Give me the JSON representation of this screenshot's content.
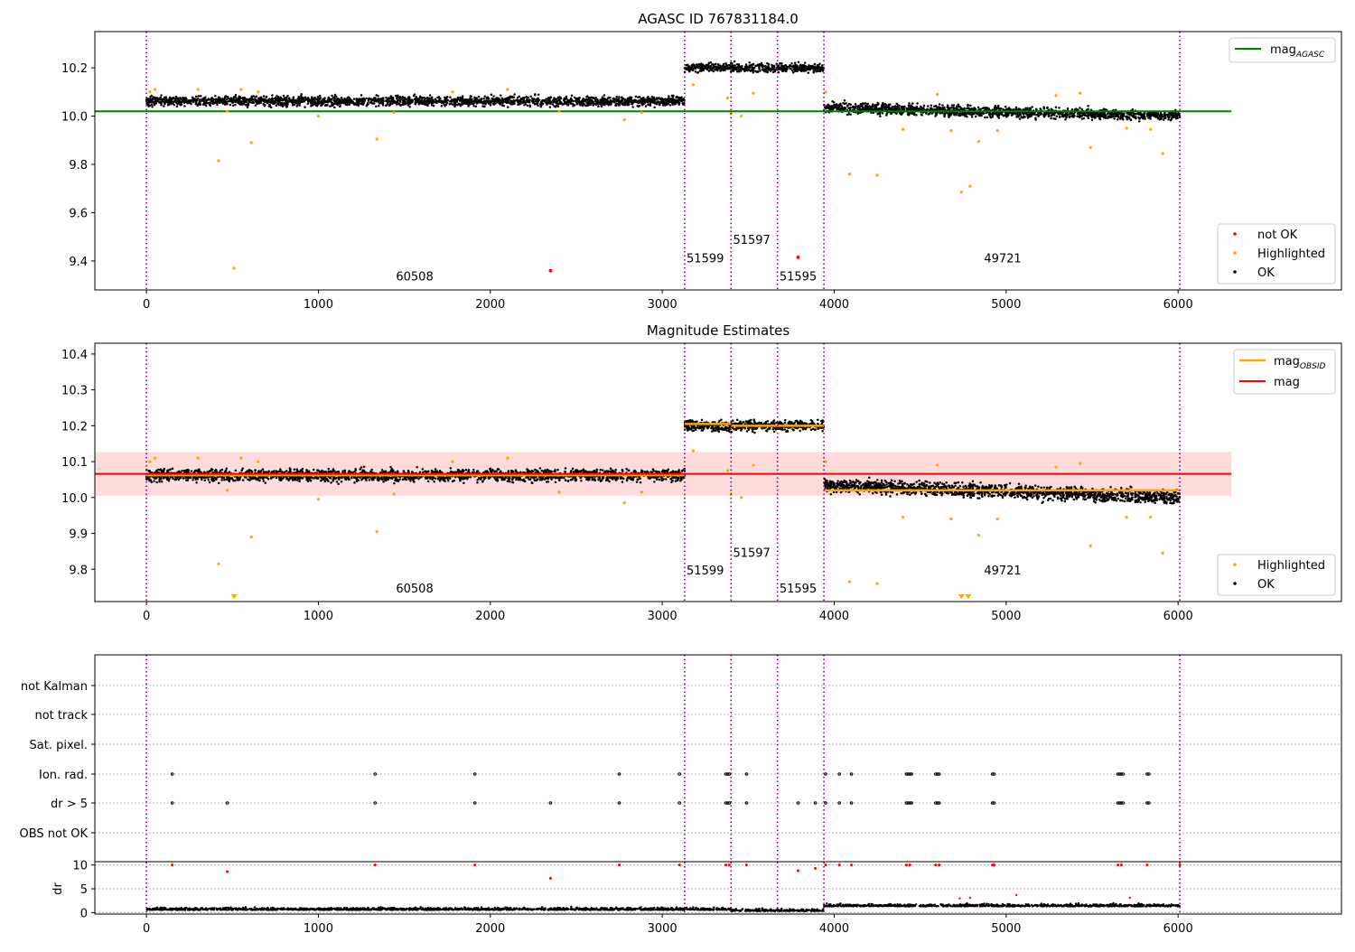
{
  "colors": {
    "ok": "#000000",
    "highlighted": "#ffa500",
    "not_ok": "#ff0000",
    "agasc_line": "#008000",
    "mag_line": "#ff0000",
    "obsid_mag": "#ffa500",
    "band": "#ffc0c0",
    "boundary": "#800080",
    "grid": "#b0b0b0"
  },
  "chart_data": [
    {
      "type": "scatter",
      "title": "AGASC ID 767831184.0",
      "xlim": [
        -300,
        6950
      ],
      "ylim": [
        9.28,
        10.35
      ],
      "xticks": [
        0,
        1000,
        2000,
        3000,
        4000,
        5000,
        6000
      ],
      "yticks": [
        9.4,
        9.6,
        9.8,
        10.0,
        10.2
      ],
      "reference_line": {
        "label": "mag",
        "subscript": "AGASC",
        "value": 10.02,
        "x_range": [
          -300,
          6310
        ]
      },
      "obsid_boundaries": [
        0,
        3130,
        3400,
        3670,
        3940,
        6010
      ],
      "obsid_labels": [
        {
          "text": "60508",
          "x": 1560,
          "y": 9.32
        },
        {
          "text": "51599",
          "x": 3250,
          "y": 9.395
        },
        {
          "text": "51597",
          "x": 3520,
          "y": 9.47
        },
        {
          "text": "51595",
          "x": 3790,
          "y": 9.32
        },
        {
          "text": "49721",
          "x": 4980,
          "y": 9.395
        }
      ],
      "segments": [
        {
          "x": [
            0,
            3130
          ],
          "mean": 10.062,
          "spread": 0.02
        },
        {
          "x": [
            3130,
            3940
          ],
          "mean": 10.2,
          "spread": 0.018
        },
        {
          "x": [
            3940,
            6010
          ],
          "mean_start": 10.035,
          "mean_end": 10.0,
          "spread": 0.022
        }
      ],
      "highlighted_points": [
        {
          "x": 20,
          "y": 10.1
        },
        {
          "x": 50,
          "y": 10.11
        },
        {
          "x": 300,
          "y": 10.11
        },
        {
          "x": 420,
          "y": 9.815
        },
        {
          "x": 470,
          "y": 10.02
        },
        {
          "x": 510,
          "y": 9.37
        },
        {
          "x": 550,
          "y": 10.11
        },
        {
          "x": 610,
          "y": 9.89
        },
        {
          "x": 650,
          "y": 10.1
        },
        {
          "x": 1000,
          "y": 10.0
        },
        {
          "x": 1340,
          "y": 9.905
        },
        {
          "x": 1440,
          "y": 10.015
        },
        {
          "x": 1780,
          "y": 10.1
        },
        {
          "x": 2100,
          "y": 10.11
        },
        {
          "x": 2400,
          "y": 10.02
        },
        {
          "x": 2780,
          "y": 9.985
        },
        {
          "x": 2880,
          "y": 10.015
        },
        {
          "x": 3180,
          "y": 10.13
        },
        {
          "x": 3380,
          "y": 10.075
        },
        {
          "x": 3400,
          "y": 10.01
        },
        {
          "x": 3460,
          "y": 10.0
        },
        {
          "x": 3530,
          "y": 10.095
        },
        {
          "x": 3950,
          "y": 10.1
        },
        {
          "x": 4090,
          "y": 9.76
        },
        {
          "x": 4250,
          "y": 9.755
        },
        {
          "x": 4400,
          "y": 9.945
        },
        {
          "x": 4600,
          "y": 10.09
        },
        {
          "x": 4680,
          "y": 9.94
        },
        {
          "x": 4740,
          "y": 9.685
        },
        {
          "x": 4790,
          "y": 9.71
        },
        {
          "x": 4840,
          "y": 9.895
        },
        {
          "x": 4950,
          "y": 9.94
        },
        {
          "x": 5290,
          "y": 10.085
        },
        {
          "x": 5430,
          "y": 10.095
        },
        {
          "x": 5490,
          "y": 9.87
        },
        {
          "x": 5700,
          "y": 9.95
        },
        {
          "x": 5840,
          "y": 9.945
        },
        {
          "x": 5910,
          "y": 9.845
        }
      ],
      "not_ok_points": [
        {
          "x": 2350,
          "y": 9.36
        },
        {
          "x": 3790,
          "y": 9.415
        }
      ],
      "legend_lines": [
        {
          "label": "mag",
          "subscript": "AGASC",
          "placement": "top-right"
        }
      ],
      "legend_markers": [
        {
          "label": "not OK",
          "color": "#ff0000",
          "placement": "bottom-right"
        },
        {
          "label": "Highlighted",
          "color": "#ffa500",
          "placement": "bottom-right"
        },
        {
          "label": "OK",
          "color": "#000000",
          "placement": "bottom-right"
        }
      ]
    },
    {
      "type": "scatter",
      "title": "Magnitude Estimates",
      "xlim": [
        -300,
        6950
      ],
      "ylim": [
        9.71,
        10.43
      ],
      "xticks": [
        0,
        1000,
        2000,
        3000,
        4000,
        5000,
        6000
      ],
      "yticks": [
        9.8,
        9.9,
        10.0,
        10.1,
        10.2,
        10.3,
        10.4
      ],
      "mag_line": {
        "label": "mag",
        "value": 10.066,
        "band": [
          10.005,
          10.127
        ],
        "x_range": [
          -300,
          6310
        ]
      },
      "obsid_mag_segments": [
        {
          "x": [
            0,
            3130
          ],
          "value": 10.062
        },
        {
          "x": [
            3130,
            3400
          ],
          "value": 10.205
        },
        {
          "x": [
            3400,
            3670
          ],
          "value": 10.2
        },
        {
          "x": [
            3670,
            3940
          ],
          "value": 10.2
        },
        {
          "x": [
            3940,
            6010
          ],
          "value": 10.02
        }
      ],
      "obsid_boundaries": [
        0,
        3130,
        3400,
        3670,
        3940,
        6010
      ],
      "obsid_labels": [
        {
          "text": "60508",
          "x": 1560,
          "y": 9.735
        },
        {
          "text": "51599",
          "x": 3250,
          "y": 9.785
        },
        {
          "text": "51597",
          "x": 3520,
          "y": 9.835
        },
        {
          "text": "51595",
          "x": 3790,
          "y": 9.735
        },
        {
          "text": "49721",
          "x": 4980,
          "y": 9.785
        }
      ],
      "segments": [
        {
          "x": [
            0,
            3130
          ],
          "mean": 10.062,
          "spread": 0.017
        },
        {
          "x": [
            3130,
            3940
          ],
          "mean": 10.2,
          "spread": 0.015
        },
        {
          "x": [
            3940,
            6010
          ],
          "mean_start": 10.035,
          "mean_end": 10.0,
          "spread": 0.019
        }
      ],
      "highlighted_points": [
        {
          "x": 20,
          "y": 10.1
        },
        {
          "x": 50,
          "y": 10.11
        },
        {
          "x": 300,
          "y": 10.11
        },
        {
          "x": 420,
          "y": 9.815
        },
        {
          "x": 470,
          "y": 10.02
        },
        {
          "x": 550,
          "y": 10.11
        },
        {
          "x": 610,
          "y": 9.89
        },
        {
          "x": 650,
          "y": 10.1
        },
        {
          "x": 1000,
          "y": 9.995
        },
        {
          "x": 1340,
          "y": 9.905
        },
        {
          "x": 1440,
          "y": 10.01
        },
        {
          "x": 1780,
          "y": 10.1
        },
        {
          "x": 2100,
          "y": 10.11
        },
        {
          "x": 2400,
          "y": 10.015
        },
        {
          "x": 2780,
          "y": 9.985
        },
        {
          "x": 2880,
          "y": 10.015
        },
        {
          "x": 3180,
          "y": 10.13
        },
        {
          "x": 3380,
          "y": 10.075
        },
        {
          "x": 3400,
          "y": 10.01
        },
        {
          "x": 3460,
          "y": 10.0
        },
        {
          "x": 3530,
          "y": 10.09
        },
        {
          "x": 3950,
          "y": 10.1
        },
        {
          "x": 4090,
          "y": 9.765
        },
        {
          "x": 4250,
          "y": 9.76
        },
        {
          "x": 4400,
          "y": 9.945
        },
        {
          "x": 4600,
          "y": 10.09
        },
        {
          "x": 4680,
          "y": 9.94
        },
        {
          "x": 4840,
          "y": 9.895
        },
        {
          "x": 4950,
          "y": 9.94
        },
        {
          "x": 5290,
          "y": 10.085
        },
        {
          "x": 5430,
          "y": 10.095
        },
        {
          "x": 5490,
          "y": 9.865
        },
        {
          "x": 5700,
          "y": 9.945
        },
        {
          "x": 5840,
          "y": 9.945
        },
        {
          "x": 5910,
          "y": 9.845
        }
      ],
      "offscale_markers": [
        {
          "x": 510
        },
        {
          "x": 4740
        },
        {
          "x": 4780
        }
      ],
      "legend_lines": [
        {
          "label": "mag",
          "subscript": "OBSID",
          "color": "#ffa500",
          "placement": "top-right"
        },
        {
          "label": "mag",
          "color": "#ff0000",
          "placement": "top-right"
        }
      ],
      "legend_markers": [
        {
          "label": "Highlighted",
          "color": "#ffa500",
          "placement": "bottom-right"
        },
        {
          "label": "OK",
          "color": "#000000",
          "placement": "bottom-right"
        }
      ]
    },
    {
      "type": "scatter",
      "title": "",
      "xlim": [
        -300,
        6950
      ],
      "xticks": [
        0,
        1000,
        2000,
        3000,
        4000,
        5000,
        6000
      ],
      "flag_rows": [
        "not Kalman",
        "not track",
        "Sat. pixel.",
        "Ion. rad.",
        "dr > 5",
        "OBS not OK"
      ],
      "flag_points": {
        "Ion. rad.": [
          150,
          1330,
          1910,
          2750,
          3100,
          3370,
          3380,
          3390,
          3490,
          3950,
          4030,
          4100,
          4420,
          4430,
          4440,
          4450,
          4590,
          4600,
          4610,
          4920,
          4930,
          5650,
          5660,
          5670,
          5680,
          5820,
          5830
        ],
        "dr > 5": [
          150,
          470,
          1330,
          1910,
          2350,
          2750,
          3100,
          3370,
          3380,
          3390,
          3490,
          3790,
          3890,
          3950,
          4030,
          4100,
          4420,
          4430,
          4440,
          4450,
          4590,
          4600,
          4610,
          4920,
          4930,
          5650,
          5660,
          5670,
          5680,
          5820,
          5830
        ]
      },
      "obsid_boundaries": [
        0,
        3130,
        3400,
        3670,
        3940,
        6010
      ],
      "dr_axis": {
        "label": "dr",
        "ylim": [
          -0.3,
          10.5
        ],
        "yticks": [
          0,
          5,
          10
        ],
        "clip": 10
      },
      "dr_high_points": [
        {
          "x": 150,
          "y": 10
        },
        {
          "x": 470,
          "y": 8.6
        },
        {
          "x": 1330,
          "y": 10
        },
        {
          "x": 1910,
          "y": 10
        },
        {
          "x": 2350,
          "y": 7.2
        },
        {
          "x": 2750,
          "y": 10
        },
        {
          "x": 3100,
          "y": 10
        },
        {
          "x": 3370,
          "y": 10
        },
        {
          "x": 3390,
          "y": 10
        },
        {
          "x": 3490,
          "y": 10
        },
        {
          "x": 3790,
          "y": 8.8
        },
        {
          "x": 3890,
          "y": 9.3
        },
        {
          "x": 3950,
          "y": 10
        },
        {
          "x": 4030,
          "y": 10
        },
        {
          "x": 4100,
          "y": 10
        },
        {
          "x": 4420,
          "y": 10
        },
        {
          "x": 4440,
          "y": 10
        },
        {
          "x": 4590,
          "y": 10
        },
        {
          "x": 4610,
          "y": 10
        },
        {
          "x": 4920,
          "y": 10
        },
        {
          "x": 4930,
          "y": 10
        },
        {
          "x": 5650,
          "y": 10
        },
        {
          "x": 5670,
          "y": 10
        },
        {
          "x": 5820,
          "y": 10
        },
        {
          "x": 6010,
          "y": 10
        }
      ],
      "dr_mid_points": [
        {
          "x": 4730,
          "y": 3.0
        },
        {
          "x": 4790,
          "y": 3.1
        },
        {
          "x": 5060,
          "y": 3.7
        },
        {
          "x": 5720,
          "y": 3.1
        }
      ]
    }
  ]
}
